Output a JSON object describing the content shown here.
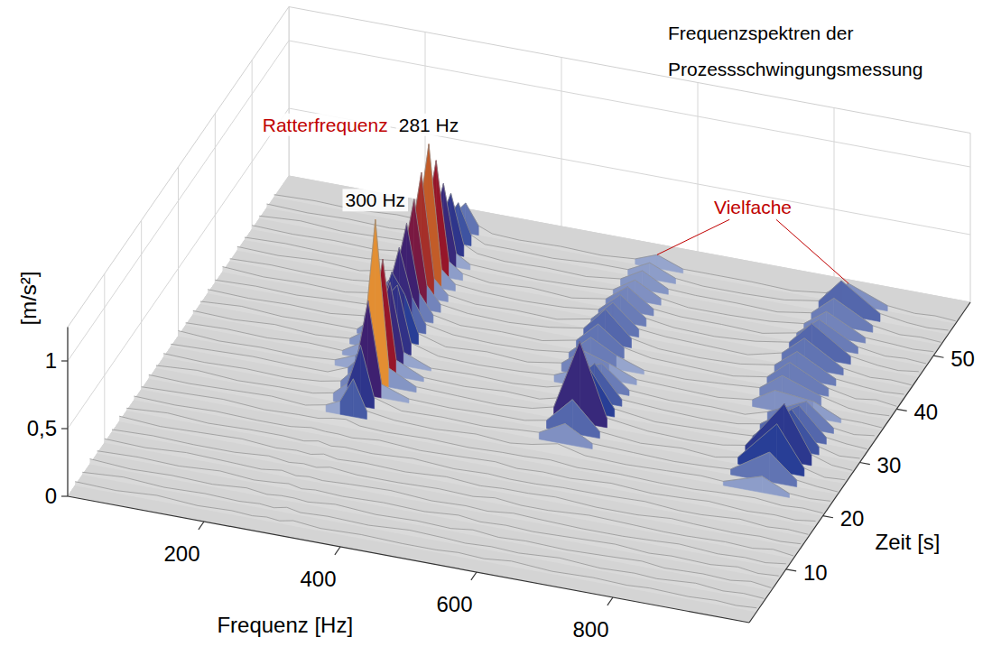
{
  "chart_data": {
    "type": "waterfall",
    "title": "Frequenzspektren der Prozessschwingungsmessung",
    "x_label": "Frequenz [Hz]",
    "y_label": "Zeit [s]",
    "z_label": "[m/s²]",
    "xlim": [
      0,
      1000
    ],
    "xticks": [
      200,
      400,
      600,
      800
    ],
    "ylim": [
      0,
      60
    ],
    "yticks": [
      10,
      20,
      30,
      40,
      50
    ],
    "zlim": [
      0,
      1.25
    ],
    "zticks": [
      0,
      {
        "value": 0.5,
        "label": "0,5"
      },
      1
    ],
    "grid": true,
    "x": [
      0,
      60,
      120,
      180,
      230,
      260,
      281,
      300,
      320,
      360,
      420,
      480,
      530,
      562,
      600,
      640,
      700,
      760,
      810,
      843,
      900,
      940,
      970,
      1000
    ],
    "y": [
      2,
      4,
      6,
      8,
      10,
      12,
      14,
      16,
      18,
      20,
      22,
      24,
      26,
      28,
      30,
      32,
      34,
      36,
      38,
      40,
      42,
      44,
      46,
      48,
      50,
      52,
      54,
      56
    ],
    "z": [
      [
        0.03,
        0.02,
        0.04,
        0.02,
        0.03,
        0.02,
        0.03,
        0.02,
        0.04,
        0.02,
        0.03,
        0.02,
        0.02,
        0.03,
        0.02,
        0.04,
        0.02,
        0.03,
        0.02,
        0.03,
        0.02,
        0.03,
        0.02,
        0.03
      ],
      [
        0.02,
        0.04,
        0.02,
        0.03,
        0.02,
        0.03,
        0.02,
        0.04,
        0.02,
        0.03,
        0.02,
        0.04,
        0.03,
        0.02,
        0.03,
        0.02,
        0.04,
        0.02,
        0.03,
        0.02,
        0.04,
        0.02,
        0.03,
        0.02
      ],
      [
        0.04,
        0.02,
        0.03,
        0.02,
        0.04,
        0.02,
        0.03,
        0.03,
        0.02,
        0.04,
        0.02,
        0.03,
        0.02,
        0.04,
        0.02,
        0.03,
        0.02,
        0.03,
        0.04,
        0.02,
        0.03,
        0.02,
        0.04,
        0.02
      ],
      [
        0.02,
        0.03,
        0.02,
        0.04,
        0.02,
        0.03,
        0.04,
        0.02,
        0.03,
        0.02,
        0.03,
        0.02,
        0.04,
        0.02,
        0.03,
        0.02,
        0.03,
        0.04,
        0.02,
        0.03,
        0.02,
        0.04,
        0.02,
        0.03
      ],
      [
        0.03,
        0.02,
        0.04,
        0.03,
        0.02,
        0.04,
        0.02,
        0.03,
        0.02,
        0.03,
        0.04,
        0.02,
        0.03,
        0.02,
        0.04,
        0.03,
        0.02,
        0.02,
        0.03,
        0.04,
        0.02,
        0.03,
        0.02,
        0.04
      ],
      [
        0.02,
        0.03,
        0.02,
        0.02,
        0.04,
        0.02,
        0.03,
        0.02,
        0.04,
        0.02,
        0.02,
        0.03,
        0.02,
        0.04,
        0.02,
        0.02,
        0.04,
        0.03,
        0.02,
        0.02,
        0.03,
        0.02,
        0.04,
        0.02
      ],
      [
        0.04,
        0.02,
        0.03,
        0.04,
        0.02,
        0.03,
        0.02,
        0.04,
        0.02,
        0.03,
        0.02,
        0.04,
        0.02,
        0.03,
        0.03,
        0.04,
        0.02,
        0.02,
        0.04,
        0.03,
        0.02,
        0.03,
        0.02,
        0.03
      ],
      [
        0.02,
        0.04,
        0.02,
        0.03,
        0.03,
        0.02,
        0.04,
        0.02,
        0.03,
        0.02,
        0.04,
        0.02,
        0.03,
        0.02,
        0.02,
        0.03,
        0.03,
        0.04,
        0.02,
        0.02,
        0.04,
        0.02,
        0.03,
        0.02
      ],
      [
        0.03,
        0.02,
        0.03,
        0.02,
        0.02,
        0.04,
        0.03,
        0.03,
        0.02,
        0.04,
        0.02,
        0.03,
        0.04,
        0.02,
        0.03,
        0.02,
        0.04,
        0.02,
        0.03,
        0.04,
        0.02,
        0.03,
        0.02,
        0.04
      ],
      [
        0.02,
        0.03,
        0.04,
        0.02,
        0.03,
        0.03,
        0.05,
        0.06,
        0.03,
        0.02,
        0.03,
        0.02,
        0.03,
        0.03,
        0.04,
        0.02,
        0.03,
        0.02,
        0.02,
        0.03,
        0.04,
        0.02,
        0.03,
        0.02
      ],
      [
        0.03,
        0.02,
        0.03,
        0.04,
        0.02,
        0.05,
        0.1,
        0.28,
        0.06,
        0.03,
        0.02,
        0.04,
        0.02,
        0.04,
        0.08,
        0.03,
        0.02,
        0.03,
        0.04,
        0.03,
        0.12,
        0.03,
        0.02,
        0.03
      ],
      [
        0.02,
        0.04,
        0.02,
        0.03,
        0.03,
        0.06,
        0.15,
        0.45,
        0.08,
        0.02,
        0.03,
        0.02,
        0.04,
        0.05,
        0.15,
        0.04,
        0.03,
        0.02,
        0.03,
        0.04,
        0.22,
        0.05,
        0.03,
        0.02
      ],
      [
        0.03,
        0.02,
        0.03,
        0.02,
        0.04,
        0.07,
        0.18,
        0.7,
        0.1,
        0.03,
        0.02,
        0.03,
        0.03,
        0.06,
        0.25,
        0.05,
        0.02,
        0.04,
        0.02,
        0.05,
        0.35,
        0.06,
        0.02,
        0.03
      ],
      [
        0.02,
        0.03,
        0.04,
        0.03,
        0.03,
        0.09,
        0.2,
        1.22,
        0.14,
        0.04,
        0.03,
        0.02,
        0.04,
        0.08,
        0.6,
        0.07,
        0.03,
        0.02,
        0.03,
        0.06,
        0.42,
        0.08,
        0.03,
        0.02
      ],
      [
        0.04,
        0.02,
        0.03,
        0.02,
        0.04,
        0.1,
        0.22,
        0.85,
        0.12,
        0.03,
        0.02,
        0.04,
        0.03,
        0.07,
        0.35,
        0.06,
        0.02,
        0.03,
        0.04,
        0.05,
        0.3,
        0.06,
        0.02,
        0.03
      ],
      [
        0.02,
        0.03,
        0.02,
        0.04,
        0.03,
        0.12,
        0.3,
        0.6,
        0.1,
        0.02,
        0.03,
        0.02,
        0.04,
        0.08,
        0.28,
        0.05,
        0.03,
        0.02,
        0.03,
        0.06,
        0.25,
        0.05,
        0.03,
        0.02
      ],
      [
        0.03,
        0.02,
        0.04,
        0.02,
        0.04,
        0.14,
        0.38,
        0.5,
        0.09,
        0.03,
        0.02,
        0.03,
        0.05,
        0.12,
        0.2,
        0.04,
        0.02,
        0.03,
        0.02,
        0.07,
        0.2,
        0.04,
        0.02,
        0.04
      ],
      [
        0.02,
        0.04,
        0.02,
        0.03,
        0.03,
        0.16,
        0.5,
        0.35,
        0.08,
        0.02,
        0.04,
        0.02,
        0.06,
        0.18,
        0.12,
        0.04,
        0.03,
        0.02,
        0.05,
        0.15,
        0.12,
        0.03,
        0.03,
        0.02
      ],
      [
        0.03,
        0.02,
        0.03,
        0.02,
        0.05,
        0.18,
        0.6,
        0.25,
        0.07,
        0.03,
        0.02,
        0.03,
        0.06,
        0.2,
        0.1,
        0.03,
        0.02,
        0.04,
        0.06,
        0.18,
        0.08,
        0.03,
        0.02,
        0.03
      ],
      [
        0.02,
        0.03,
        0.02,
        0.04,
        0.05,
        0.2,
        0.7,
        0.2,
        0.06,
        0.02,
        0.03,
        0.02,
        0.07,
        0.22,
        0.08,
        0.04,
        0.03,
        0.02,
        0.06,
        0.2,
        0.06,
        0.02,
        0.04,
        0.02
      ],
      [
        0.04,
        0.02,
        0.03,
        0.02,
        0.06,
        0.22,
        0.8,
        0.18,
        0.06,
        0.03,
        0.02,
        0.04,
        0.08,
        0.25,
        0.07,
        0.03,
        0.02,
        0.03,
        0.07,
        0.2,
        0.05,
        0.03,
        0.02,
        0.03
      ],
      [
        0.02,
        0.03,
        0.02,
        0.03,
        0.06,
        0.24,
        0.92,
        0.15,
        0.05,
        0.02,
        0.03,
        0.02,
        0.07,
        0.22,
        0.06,
        0.04,
        0.03,
        0.02,
        0.08,
        0.22,
        0.05,
        0.02,
        0.03,
        0.02
      ],
      [
        0.03,
        0.02,
        0.04,
        0.02,
        0.07,
        0.26,
        1.05,
        0.14,
        0.05,
        0.03,
        0.02,
        0.03,
        0.06,
        0.2,
        0.06,
        0.03,
        0.02,
        0.04,
        0.08,
        0.25,
        0.06,
        0.03,
        0.02,
        0.04
      ],
      [
        0.02,
        0.03,
        0.02,
        0.03,
        0.06,
        0.22,
        0.85,
        0.12,
        0.05,
        0.02,
        0.04,
        0.02,
        0.06,
        0.18,
        0.05,
        0.03,
        0.03,
        0.02,
        0.07,
        0.2,
        0.05,
        0.02,
        0.03,
        0.02
      ],
      [
        0.03,
        0.02,
        0.03,
        0.02,
        0.05,
        0.18,
        0.6,
        0.1,
        0.04,
        0.03,
        0.02,
        0.03,
        0.05,
        0.15,
        0.05,
        0.02,
        0.02,
        0.03,
        0.06,
        0.18,
        0.04,
        0.03,
        0.02,
        0.03
      ],
      [
        0.02,
        0.04,
        0.02,
        0.03,
        0.04,
        0.15,
        0.45,
        0.09,
        0.04,
        0.02,
        0.03,
        0.02,
        0.05,
        0.14,
        0.04,
        0.03,
        0.03,
        0.02,
        0.06,
        0.2,
        0.05,
        0.02,
        0.03,
        0.02
      ],
      [
        0.03,
        0.02,
        0.03,
        0.02,
        0.04,
        0.12,
        0.3,
        0.08,
        0.03,
        0.03,
        0.02,
        0.04,
        0.04,
        0.12,
        0.04,
        0.02,
        0.02,
        0.03,
        0.07,
        0.25,
        0.06,
        0.03,
        0.02,
        0.03
      ],
      [
        0.02,
        0.03,
        0.02,
        0.04,
        0.03,
        0.1,
        0.22,
        0.07,
        0.03,
        0.02,
        0.03,
        0.02,
        0.04,
        0.1,
        0.03,
        0.03,
        0.03,
        0.02,
        0.05,
        0.15,
        0.04,
        0.02,
        0.03,
        0.02
      ]
    ],
    "annotations": [
      {
        "text": "Ratterfrequenz",
        "color": "#c00000",
        "x": 281,
        "y": 46
      },
      {
        "text": "281 Hz",
        "x": 281,
        "y": 46
      },
      {
        "text": "300 Hz",
        "x": 300,
        "y": 28
      },
      {
        "text": "Vielfache",
        "color": "#c00000",
        "targets": [
          {
            "x": 562,
            "y": 56
          },
          {
            "x": 843,
            "y": 56
          }
        ]
      }
    ]
  }
}
